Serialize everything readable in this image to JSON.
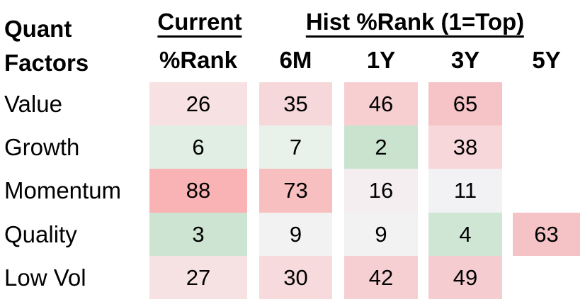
{
  "page": {
    "background": "#ffffff",
    "text_color": "#000000"
  },
  "table": {
    "corner": {
      "line1": "Quant",
      "line2": "Factors"
    },
    "groups": {
      "current": "Current",
      "hist": "Hist %Rank (1=Top)"
    },
    "columns": [
      "%Rank",
      "6M",
      "1Y",
      "3Y",
      "5Y"
    ],
    "column_keys": [
      "current-rank",
      "6m",
      "1y",
      "3y",
      "5y"
    ],
    "rows": [
      {
        "key": "value",
        "label": "Value",
        "cells": [
          {
            "value": 26,
            "bg": "#f8e1e2"
          },
          {
            "value": 35,
            "bg": "#f7d8da"
          },
          {
            "value": 46,
            "bg": "#f7cfd1"
          },
          {
            "value": 65,
            "bg": "#f6c4c6"
          },
          null
        ]
      },
      {
        "key": "growth",
        "label": "Growth",
        "cells": [
          {
            "value": 6,
            "bg": "#e0eee4"
          },
          {
            "value": 7,
            "bg": "#e8f1ea"
          },
          {
            "value": 2,
            "bg": "#c9e3ce"
          },
          {
            "value": 38,
            "bg": "#f7d7d9"
          },
          null
        ]
      },
      {
        "key": "momentum",
        "label": "Momentum",
        "cells": [
          {
            "value": 88,
            "bg": "#f9b3b5"
          },
          {
            "value": 73,
            "bg": "#f8bfc1"
          },
          {
            "value": 16,
            "bg": "#f4eef0"
          },
          {
            "value": 11,
            "bg": "#f2f1f3"
          },
          null
        ]
      },
      {
        "key": "quality",
        "label": "Quality",
        "cells": [
          {
            "value": 3,
            "bg": "#cde4d2"
          },
          {
            "value": 9,
            "bg": "#f2f2f2"
          },
          {
            "value": 9,
            "bg": "#f2f2f2"
          },
          {
            "value": 4,
            "bg": "#cfe6d4"
          },
          {
            "value": 63,
            "bg": "#f5c3c5"
          }
        ]
      },
      {
        "key": "low-vol",
        "label": "Low Vol",
        "cells": [
          {
            "value": 27,
            "bg": "#f6e2e3"
          },
          {
            "value": 30,
            "bg": "#f7dbdc"
          },
          {
            "value": 42,
            "bg": "#f5cfd2"
          },
          {
            "value": 49,
            "bg": "#f5cccf"
          },
          null
        ]
      }
    ]
  },
  "chart_data": {
    "type": "heatmap",
    "title": "Quant Factors",
    "col_groups": [
      {
        "label": "Current",
        "columns": [
          "%Rank"
        ]
      },
      {
        "label": "Hist %Rank (1=Top)",
        "columns": [
          "6M",
          "1Y",
          "3Y",
          "5Y"
        ]
      }
    ],
    "columns": [
      "%Rank",
      "6M",
      "1Y",
      "3Y",
      "5Y"
    ],
    "rows": [
      "Value",
      "Growth",
      "Momentum",
      "Quality",
      "Low Vol"
    ],
    "values": [
      [
        26,
        35,
        46,
        65,
        null
      ],
      [
        6,
        7,
        2,
        38,
        null
      ],
      [
        88,
        73,
        16,
        11,
        null
      ],
      [
        3,
        9,
        9,
        4,
        63
      ],
      [
        27,
        30,
        42,
        49,
        null
      ]
    ],
    "value_range": [
      1,
      100
    ],
    "color_scale": {
      "low_green": "#c9e3ce",
      "mid_neutral": "#f2f2f2",
      "high_red": "#f9b3b5",
      "note": "1=Top (green) to high rank (red)"
    },
    "legend_position": "none",
    "grid": false
  }
}
